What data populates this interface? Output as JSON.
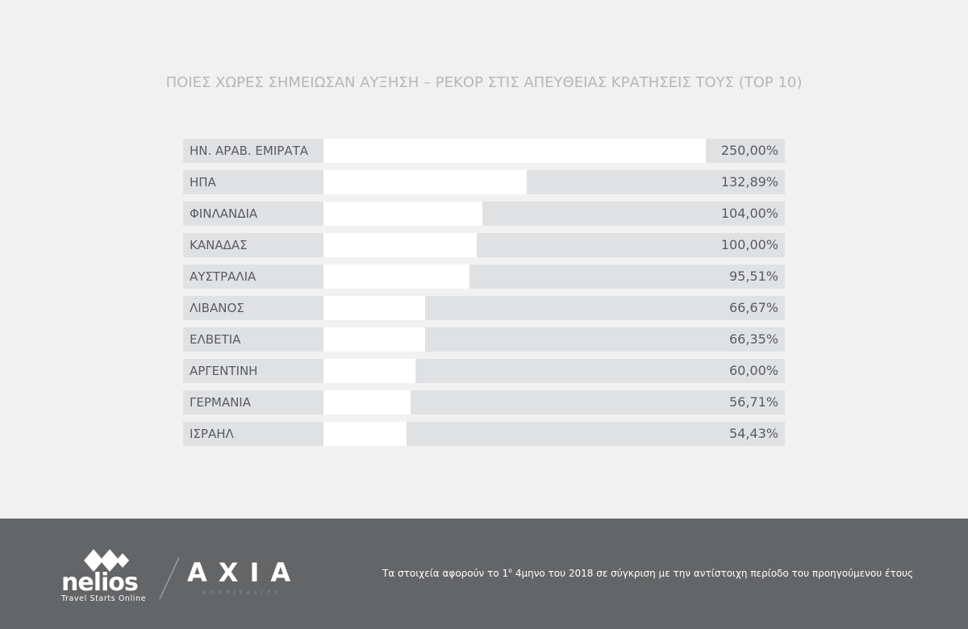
{
  "chart_data": {
    "type": "bar",
    "orientation": "horizontal",
    "title": "ΠΟΙΕΣ ΧΩΡΕΣ ΣΗΜΕΙΩΣΑΝ ΑΥΞΗΣΗ – ΡΕΚΟΡ ΣΤΙΣ ΑΠΕΥΘΕΙΑΣ ΚΡΑΤΗΣΕΙΣ ΤΟΥΣ (TOP 10)",
    "categories": [
      "ΗΝ. ΑΡΑΒ. ΕΜΙΡΑΤΑ",
      "ΗΠΑ",
      "ΦΙΝΛΑΝΔΙΑ",
      "ΚΑΝΑΔΑΣ",
      "ΑΥΣΤΡΑΛΙΑ",
      "ΛΙΒΑΝΟΣ",
      "ΕΛΒΕΤΙΑ",
      "ΑΡΓΕΝΤΙΝΗ",
      "ΓΕΡΜΑΝΙΑ",
      "ΙΣΡΑΗΛ"
    ],
    "values": [
      250,
      132.89,
      104,
      100,
      95.51,
      66.67,
      66.35,
      60,
      56.71,
      54.43
    ],
    "value_labels": [
      "250,00%",
      "132,89%",
      "104,00%",
      "100,00%",
      "95,51%",
      "66,67%",
      "66,35%",
      "60,00%",
      "56,71%",
      "54,43%"
    ],
    "color": "#ffffff"
  },
  "footer": {
    "logo_left": {
      "name": "nelios",
      "tagline": "Travel Starts Online"
    },
    "logo_right": {
      "name": "AXIA",
      "tagline": "HOSPITALITY"
    },
    "note": [
      "Τα στοιχεία αφορούν το 1",
      "ο",
      " 4μηνο του 2018 σε σύγκριση με την αντίστοιχη περίοδο του προηγούμενου έτους"
    ]
  }
}
